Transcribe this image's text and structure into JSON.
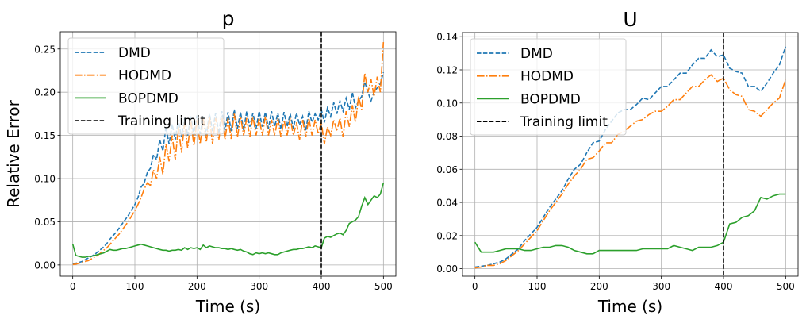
{
  "chart_data": [
    {
      "type": "line",
      "title": "p",
      "xlabel": "Time (s)",
      "ylabel": "Relative Error",
      "xlim": [
        -20,
        520
      ],
      "ylim": [
        -0.013,
        0.27
      ],
      "xticks": [
        0,
        100,
        200,
        300,
        400,
        500
      ],
      "xtick_labels": [
        "0",
        "100",
        "200",
        "300",
        "400",
        "500"
      ],
      "yticks": [
        0,
        0.05,
        0.1,
        0.15,
        0.2,
        0.25
      ],
      "ytick_labels": [
        "0.00",
        "0.05",
        "0.10",
        "0.15",
        "0.20",
        "0.25"
      ],
      "grid": true,
      "legend_position": "top-left",
      "x_start": 0,
      "x_step": 5,
      "series": [
        {
          "name": "DMD",
          "color": "#1f77b4",
          "style": "dashed",
          "values": [
            0.001,
            0.002,
            0.003,
            0.004,
            0.006,
            0.008,
            0.01,
            0.012,
            0.015,
            0.018,
            0.021,
            0.025,
            0.03,
            0.034,
            0.038,
            0.043,
            0.048,
            0.053,
            0.058,
            0.064,
            0.07,
            0.078,
            0.09,
            0.095,
            0.107,
            0.112,
            0.128,
            0.122,
            0.145,
            0.132,
            0.16,
            0.14,
            0.163,
            0.145,
            0.168,
            0.148,
            0.17,
            0.15,
            0.172,
            0.15,
            0.173,
            0.152,
            0.172,
            0.15,
            0.175,
            0.155,
            0.176,
            0.152,
            0.178,
            0.156,
            0.177,
            0.155,
            0.18,
            0.158,
            0.177,
            0.156,
            0.178,
            0.16,
            0.176,
            0.158,
            0.178,
            0.16,
            0.177,
            0.158,
            0.178,
            0.16,
            0.176,
            0.157,
            0.177,
            0.16,
            0.175,
            0.158,
            0.176,
            0.162,
            0.172,
            0.155,
            0.178,
            0.165,
            0.175,
            0.168,
            0.18,
            0.165,
            0.182,
            0.172,
            0.188,
            0.175,
            0.19,
            0.178,
            0.193,
            0.18,
            0.2,
            0.182,
            0.19,
            0.195,
            0.212,
            0.2,
            0.19,
            0.2,
            0.205,
            0.21,
            0.223
          ]
        },
        {
          "name": "HODMD",
          "color": "#ff7f0e",
          "style": "dashdot",
          "values": [
            0.0005,
            0.001,
            0.002,
            0.003,
            0.004,
            0.005,
            0.007,
            0.009,
            0.011,
            0.014,
            0.017,
            0.02,
            0.024,
            0.028,
            0.032,
            0.036,
            0.041,
            0.046,
            0.051,
            0.057,
            0.063,
            0.07,
            0.078,
            0.088,
            0.095,
            0.092,
            0.11,
            0.1,
            0.125,
            0.105,
            0.14,
            0.12,
            0.15,
            0.122,
            0.16,
            0.13,
            0.165,
            0.135,
            0.168,
            0.138,
            0.168,
            0.14,
            0.17,
            0.142,
            0.172,
            0.14,
            0.17,
            0.145,
            0.172,
            0.145,
            0.17,
            0.146,
            0.175,
            0.148,
            0.172,
            0.15,
            0.17,
            0.148,
            0.172,
            0.15,
            0.17,
            0.15,
            0.172,
            0.15,
            0.168,
            0.15,
            0.17,
            0.148,
            0.168,
            0.15,
            0.17,
            0.15,
            0.165,
            0.145,
            0.168,
            0.148,
            0.17,
            0.15,
            0.168,
            0.152,
            0.165,
            0.14,
            0.16,
            0.15,
            0.168,
            0.155,
            0.17,
            0.148,
            0.178,
            0.16,
            0.185,
            0.165,
            0.195,
            0.18,
            0.222,
            0.2,
            0.215,
            0.195,
            0.218,
            0.2,
            0.258
          ]
        },
        {
          "name": "BOPDMD",
          "color": "#2ca02c",
          "style": "solid",
          "values": [
            0.024,
            0.011,
            0.01,
            0.009,
            0.009,
            0.01,
            0.01,
            0.011,
            0.012,
            0.013,
            0.014,
            0.016,
            0.018,
            0.017,
            0.017,
            0.018,
            0.019,
            0.019,
            0.02,
            0.021,
            0.022,
            0.023,
            0.024,
            0.023,
            0.022,
            0.021,
            0.02,
            0.019,
            0.018,
            0.017,
            0.017,
            0.016,
            0.017,
            0.017,
            0.018,
            0.017,
            0.02,
            0.018,
            0.02,
            0.019,
            0.02,
            0.018,
            0.023,
            0.02,
            0.022,
            0.021,
            0.02,
            0.02,
            0.019,
            0.019,
            0.018,
            0.019,
            0.018,
            0.017,
            0.018,
            0.016,
            0.015,
            0.013,
            0.012,
            0.014,
            0.013,
            0.014,
            0.013,
            0.014,
            0.013,
            0.012,
            0.012,
            0.014,
            0.015,
            0.016,
            0.017,
            0.018,
            0.018,
            0.019,
            0.019,
            0.02,
            0.021,
            0.02,
            0.022,
            0.021,
            0.02,
            0.031,
            0.033,
            0.032,
            0.034,
            0.036,
            0.037,
            0.035,
            0.04,
            0.048,
            0.05,
            0.052,
            0.056,
            0.068,
            0.078,
            0.07,
            0.075,
            0.08,
            0.078,
            0.082,
            0.095
          ]
        }
      ],
      "vline": {
        "name": "Training limit",
        "x": 400,
        "color": "#000000",
        "style": "dashed"
      }
    },
    {
      "type": "line",
      "title": "U",
      "xlabel": "Time (s)",
      "ylabel": "",
      "xlim": [
        -20,
        520
      ],
      "ylim": [
        -0.0045,
        0.1425
      ],
      "xticks": [
        0,
        100,
        200,
        300,
        400,
        500
      ],
      "xtick_labels": [
        "0",
        "100",
        "200",
        "300",
        "400",
        "500"
      ],
      "yticks": [
        0,
        0.02,
        0.04,
        0.06,
        0.08,
        0.1,
        0.12,
        0.14
      ],
      "ytick_labels": [
        "0.00",
        "0.02",
        "0.04",
        "0.06",
        "0.08",
        "0.10",
        "0.12",
        "0.14"
      ],
      "grid": true,
      "legend_position": "top-left",
      "x_start": 0,
      "x_step": 10,
      "series": [
        {
          "name": "DMD",
          "color": "#1f77b4",
          "style": "dashed",
          "values": [
            0.001,
            0.0015,
            0.002,
            0.003,
            0.004,
            0.006,
            0.009,
            0.012,
            0.017,
            0.021,
            0.025,
            0.031,
            0.037,
            0.042,
            0.047,
            0.054,
            0.06,
            0.063,
            0.07,
            0.076,
            0.077,
            0.084,
            0.089,
            0.094,
            0.096,
            0.096,
            0.099,
            0.103,
            0.102,
            0.106,
            0.11,
            0.11,
            0.114,
            0.118,
            0.118,
            0.123,
            0.127,
            0.127,
            0.132,
            0.128,
            0.129,
            0.121,
            0.119,
            0.118,
            0.11,
            0.11,
            0.107,
            0.112,
            0.118,
            0.123,
            0.134
          ]
        },
        {
          "name": "HODMD",
          "color": "#ff7f0e",
          "style": "dashdot",
          "values": [
            0.0005,
            0.001,
            0.002,
            0.002,
            0.003,
            0.005,
            0.008,
            0.011,
            0.015,
            0.019,
            0.023,
            0.029,
            0.035,
            0.04,
            0.045,
            0.051,
            0.056,
            0.06,
            0.066,
            0.067,
            0.071,
            0.076,
            0.076,
            0.081,
            0.083,
            0.086,
            0.089,
            0.09,
            0.093,
            0.095,
            0.095,
            0.098,
            0.102,
            0.102,
            0.106,
            0.11,
            0.11,
            0.114,
            0.117,
            0.113,
            0.115,
            0.108,
            0.105,
            0.104,
            0.096,
            0.095,
            0.092,
            0.096,
            0.1,
            0.103,
            0.114
          ]
        },
        {
          "name": "BOPDMD",
          "color": "#2ca02c",
          "style": "solid",
          "values": [
            0.016,
            0.01,
            0.01,
            0.01,
            0.011,
            0.012,
            0.012,
            0.012,
            0.011,
            0.011,
            0.012,
            0.013,
            0.013,
            0.014,
            0.014,
            0.013,
            0.011,
            0.01,
            0.009,
            0.009,
            0.011,
            0.011,
            0.011,
            0.011,
            0.011,
            0.011,
            0.011,
            0.012,
            0.012,
            0.012,
            0.012,
            0.012,
            0.014,
            0.013,
            0.012,
            0.011,
            0.013,
            0.013,
            0.013,
            0.014,
            0.016,
            0.027,
            0.028,
            0.031,
            0.032,
            0.035,
            0.043,
            0.042,
            0.044,
            0.045,
            0.045
          ]
        }
      ],
      "vline": {
        "name": "Training limit",
        "x": 400,
        "color": "#000000",
        "style": "dashed"
      }
    }
  ]
}
